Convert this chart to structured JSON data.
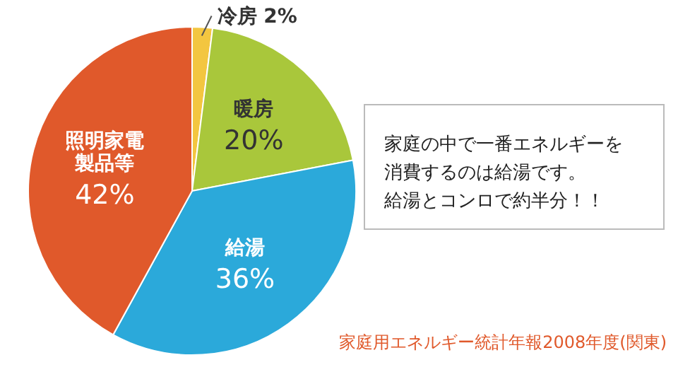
{
  "chart_data": {
    "type": "pie",
    "categories": [
      "冷房",
      "暖房",
      "給湯",
      "照明家電製品等"
    ],
    "values": [
      2,
      20,
      36,
      42
    ],
    "value_labels": [
      "2%",
      "20%",
      "36%",
      "42%"
    ],
    "colors": [
      "#f3c640",
      "#a9c73b",
      "#2ba9da",
      "#e0592b"
    ],
    "annotations": [
      "家庭の中で一番エネルギーを消費するのは給湯です。給湯とコンロで約半分！！",
      "家庭用エネルギー統計年報2008年度(関東)"
    ],
    "legend": false
  }
}
